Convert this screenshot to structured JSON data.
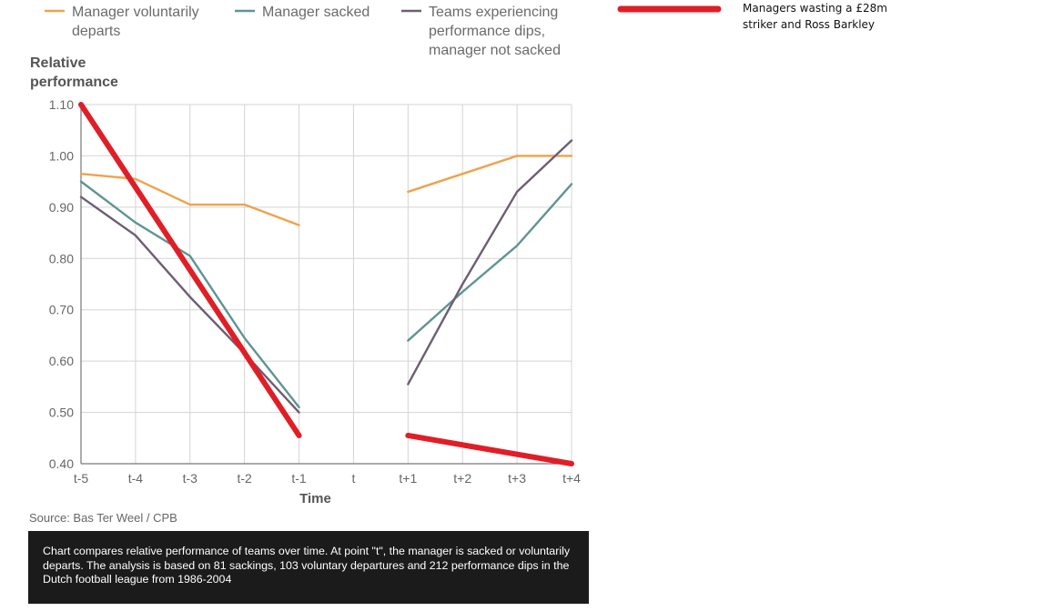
{
  "chart_data": {
    "type": "line",
    "ylabel_lines": [
      "Relative",
      "performance"
    ],
    "xlabel": "Time",
    "categories": [
      "t-5",
      "t-4",
      "t-3",
      "t-2",
      "t-1",
      "t",
      "t+1",
      "t+2",
      "t+3",
      "t+4"
    ],
    "yticks": [
      "0.40",
      "0.50",
      "0.60",
      "0.70",
      "0.80",
      "0.90",
      "1.00",
      "1.10"
    ],
    "ylim": [
      0.4,
      1.1
    ],
    "grid": true,
    "legend_position": "top",
    "series": [
      {
        "name_lines": [
          "Manager voluntarily",
          "departs"
        ],
        "color": "#f0a24b",
        "values": [
          0.965,
          0.955,
          0.905,
          0.905,
          0.865,
          null,
          0.93,
          0.965,
          1.0,
          1.0
        ]
      },
      {
        "name_lines": [
          "Manager sacked"
        ],
        "color": "#5e9593",
        "values": [
          0.95,
          0.87,
          0.805,
          0.645,
          0.51,
          null,
          0.64,
          0.735,
          0.825,
          0.945
        ]
      },
      {
        "name_lines": [
          "Teams experiencing",
          "performance dips,",
          "manager not sacked"
        ],
        "color": "#6e5e73",
        "values": [
          0.92,
          0.845,
          0.725,
          0.615,
          0.5,
          null,
          0.555,
          0.75,
          0.93,
          1.03
        ]
      }
    ],
    "annotation_strokes": {
      "color": "#e01e26",
      "description_points": [
        [
          [
            0,
            1.1
          ],
          [
            4,
            0.455
          ]
        ],
        [
          [
            6,
            0.455
          ],
          [
            9,
            0.4
          ]
        ]
      ]
    }
  },
  "source": "Source: Bas Ter Weel / CPB",
  "caption": "Chart compares relative performance of teams over time. At point \"t\", the manager is sacked or voluntarily departs. The analysis is based on 81 sackings, 103 voluntary departures and 212 performance dips in the Dutch football league from 1986-2004",
  "annotation": {
    "color": "#e01e26",
    "text": "Managers wasting a £28m striker and Ross Barkley"
  }
}
